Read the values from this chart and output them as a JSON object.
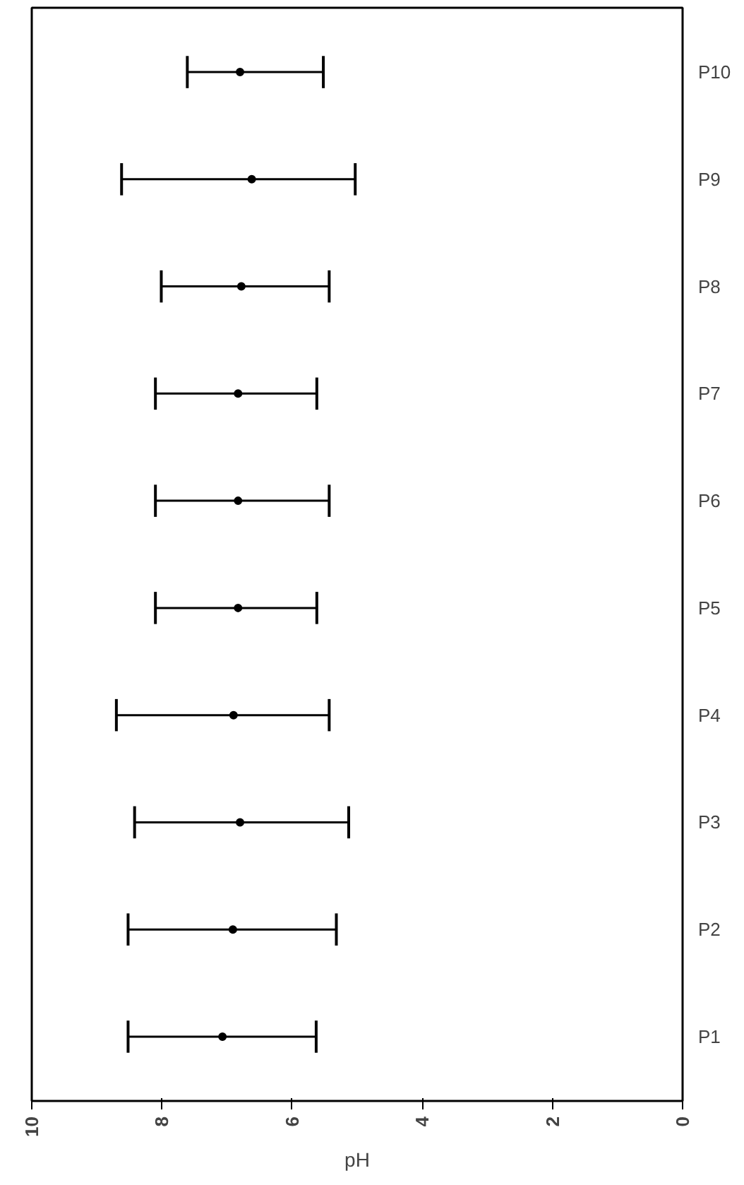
{
  "chart_data": {
    "type": "scatter",
    "orientation": "horizontal",
    "xlabel": "pH",
    "categories": [
      "P10",
      "P9",
      "P8",
      "P7",
      "P6",
      "P5",
      "P4",
      "P3",
      "P2",
      "P1"
    ],
    "values": [
      6.8,
      6.62,
      6.78,
      6.83,
      6.83,
      6.83,
      6.9,
      6.8,
      6.91,
      7.07
    ],
    "errors": [
      [
        5.52,
        7.61
      ],
      [
        5.03,
        8.62
      ],
      [
        5.43,
        8.01
      ],
      [
        5.62,
        8.1
      ],
      [
        5.43,
        8.1
      ],
      [
        5.62,
        8.1
      ],
      [
        5.43,
        8.7
      ],
      [
        5.13,
        8.42
      ],
      [
        5.32,
        8.52
      ],
      [
        5.63,
        8.52
      ]
    ],
    "color": "#000000",
    "xlim": [
      10,
      0
    ],
    "xticks": [
      10,
      8,
      6,
      4,
      2,
      0
    ],
    "grid": false,
    "legend": false,
    "marker": "circle"
  }
}
